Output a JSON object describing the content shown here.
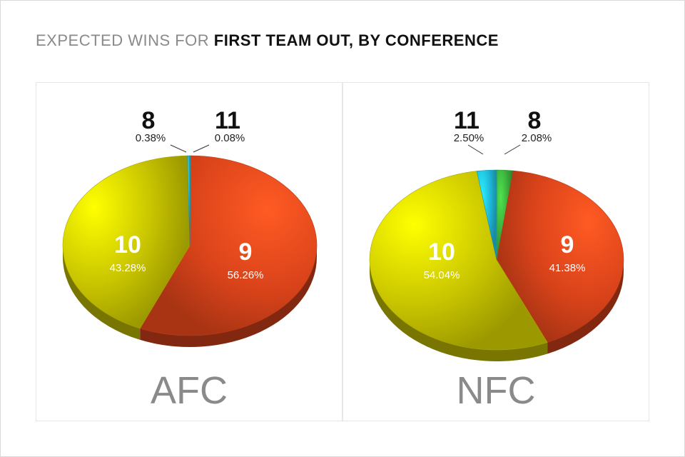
{
  "title": {
    "light": "EXPECTED WINS FOR ",
    "bold": "FIRST TEAM OUT, BY CONFERENCE"
  },
  "chart_data": [
    {
      "type": "pie",
      "label": "AFC",
      "slices": [
        {
          "name": "9",
          "value": 56.26,
          "pct_text": "56.26%",
          "color": "#d9431a"
        },
        {
          "name": "10",
          "value": 43.28,
          "pct_text": "43.28%",
          "color": "#c8c400"
        },
        {
          "name": "8",
          "value": 0.38,
          "pct_text": "0.38%",
          "color": "#2aa6b8"
        },
        {
          "name": "11",
          "value": 0.08,
          "pct_text": "0.08%",
          "color": "#2aa6b8"
        }
      ]
    },
    {
      "type": "pie",
      "label": "NFC",
      "slices": [
        {
          "name": "9",
          "value": 41.38,
          "pct_text": "41.38%",
          "color": "#d9431a"
        },
        {
          "name": "10",
          "value": 54.04,
          "pct_text": "54.04%",
          "color": "#c8c400"
        },
        {
          "name": "11",
          "value": 2.5,
          "pct_text": "2.50%",
          "color": "#1fb4d6"
        },
        {
          "name": "8",
          "value": 2.08,
          "pct_text": "2.08%",
          "color": "#3aa83a"
        }
      ]
    }
  ]
}
